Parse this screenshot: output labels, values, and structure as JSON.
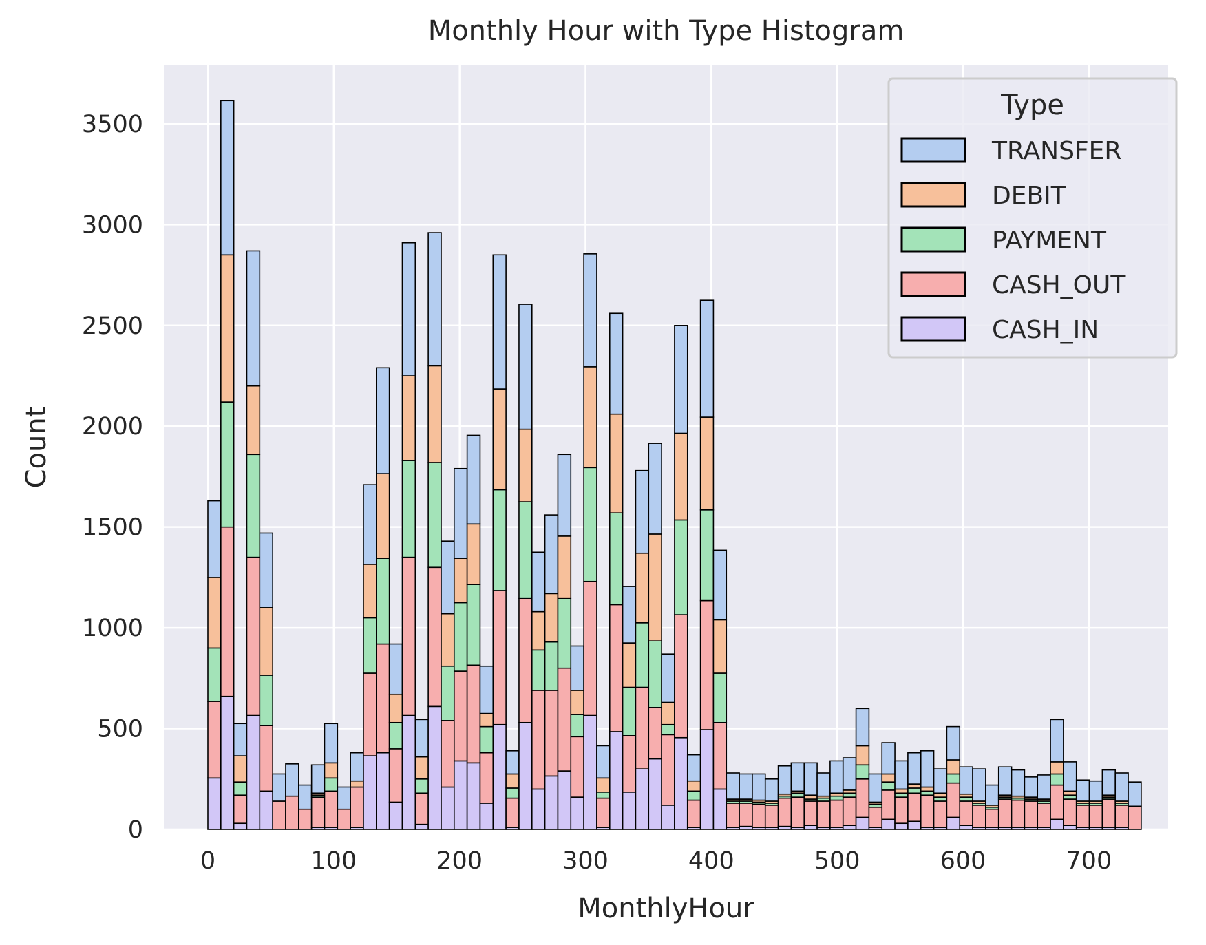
{
  "chart_data": {
    "type": "bar",
    "title": "Monthly Hour with Type Histogram",
    "xlabel": "MonthlyHour",
    "ylabel": "Count",
    "stacked": true,
    "xlim": [
      -35,
      763
    ],
    "ylim": [
      0,
      3790
    ],
    "xticks": [
      0,
      100,
      200,
      300,
      400,
      500,
      600,
      700
    ],
    "yticks": [
      0,
      500,
      1000,
      1500,
      2000,
      2500,
      3000,
      3500
    ],
    "grid": true,
    "legend_title": "Type",
    "legend_position": "top-right",
    "bin_start": 0,
    "bin_width": 10.3,
    "series": [
      {
        "name": "CASH_IN",
        "color": "#d2c7f7",
        "values": [
          255,
          660,
          30,
          565,
          190,
          0,
          0,
          0,
          10,
          10,
          0,
          10,
          365,
          380,
          135,
          565,
          25,
          610,
          210,
          340,
          330,
          130,
          520,
          10,
          530,
          200,
          265,
          290,
          160,
          565,
          10,
          485,
          185,
          300,
          350,
          120,
          455,
          10,
          495,
          200,
          10,
          15,
          10,
          10,
          15,
          10,
          20,
          10,
          10,
          20,
          60,
          10,
          50,
          30,
          40,
          10,
          10,
          60,
          20,
          10,
          10,
          10,
          10,
          10,
          10,
          50,
          20,
          10,
          10,
          10,
          10,
          0
        ]
      },
      {
        "name": "CASH_OUT",
        "color": "#f7aeae",
        "values": [
          380,
          840,
          140,
          785,
          325,
          140,
          165,
          100,
          150,
          180,
          100,
          200,
          410,
          540,
          265,
          785,
          155,
          690,
          330,
          445,
          485,
          250,
          665,
          145,
          615,
          490,
          425,
          510,
          300,
          665,
          145,
          630,
          280,
          405,
          255,
          350,
          610,
          135,
          640,
          330,
          120,
          115,
          115,
          110,
          140,
          150,
          120,
          130,
          135,
          140,
          190,
          100,
          145,
          130,
          140,
          160,
          130,
          170,
          120,
          110,
          90,
          140,
          135,
          130,
          120,
          170,
          130,
          110,
          110,
          140,
          110,
          115
        ]
      },
      {
        "name": "PAYMENT",
        "color": "#a3e3b8",
        "values": [
          265,
          620,
          65,
          510,
          250,
          0,
          0,
          0,
          10,
          65,
          0,
          0,
          275,
          425,
          130,
          480,
          70,
          520,
          270,
          340,
          400,
          130,
          500,
          50,
          480,
          200,
          240,
          345,
          110,
          565,
          30,
          455,
          240,
          320,
          330,
          50,
          470,
          45,
          450,
          245,
          10,
          10,
          10,
          10,
          10,
          20,
          10,
          15,
          20,
          20,
          70,
          15,
          40,
          20,
          25,
          20,
          20,
          45,
          20,
          10,
          10,
          10,
          10,
          10,
          10,
          55,
          20,
          10,
          10,
          10,
          10,
          0
        ]
      },
      {
        "name": "DEBIT",
        "color": "#f7c09b",
        "values": [
          350,
          730,
          130,
          340,
          335,
          0,
          0,
          0,
          10,
          75,
          0,
          30,
          265,
          420,
          140,
          420,
          110,
          480,
          260,
          220,
          300,
          65,
          500,
          70,
          360,
          190,
          240,
          310,
          120,
          500,
          70,
          490,
          220,
          345,
          530,
          110,
          430,
          50,
          460,
          265,
          10,
          10,
          10,
          10,
          10,
          10,
          20,
          10,
          15,
          15,
          95,
          10,
          40,
          20,
          20,
          20,
          20,
          70,
          15,
          10,
          10,
          10,
          10,
          10,
          10,
          60,
          20,
          10,
          10,
          10,
          10,
          0
        ]
      },
      {
        "name": "TRANSFER",
        "color": "#b4cdf0",
        "values": [
          380,
          765,
          160,
          670,
          370,
          135,
          160,
          120,
          140,
          195,
          110,
          140,
          395,
          525,
          250,
          660,
          185,
          660,
          360,
          445,
          440,
          235,
          665,
          115,
          620,
          295,
          390,
          405,
          220,
          560,
          160,
          500,
          280,
          410,
          450,
          240,
          535,
          130,
          580,
          345,
          130,
          125,
          130,
          110,
          140,
          140,
          160,
          115,
          160,
          160,
          185,
          140,
          155,
          140,
          155,
          180,
          120,
          165,
          135,
          160,
          100,
          140,
          130,
          100,
          120,
          210,
          145,
          105,
          100,
          125,
          140,
          120
        ]
      }
    ]
  }
}
